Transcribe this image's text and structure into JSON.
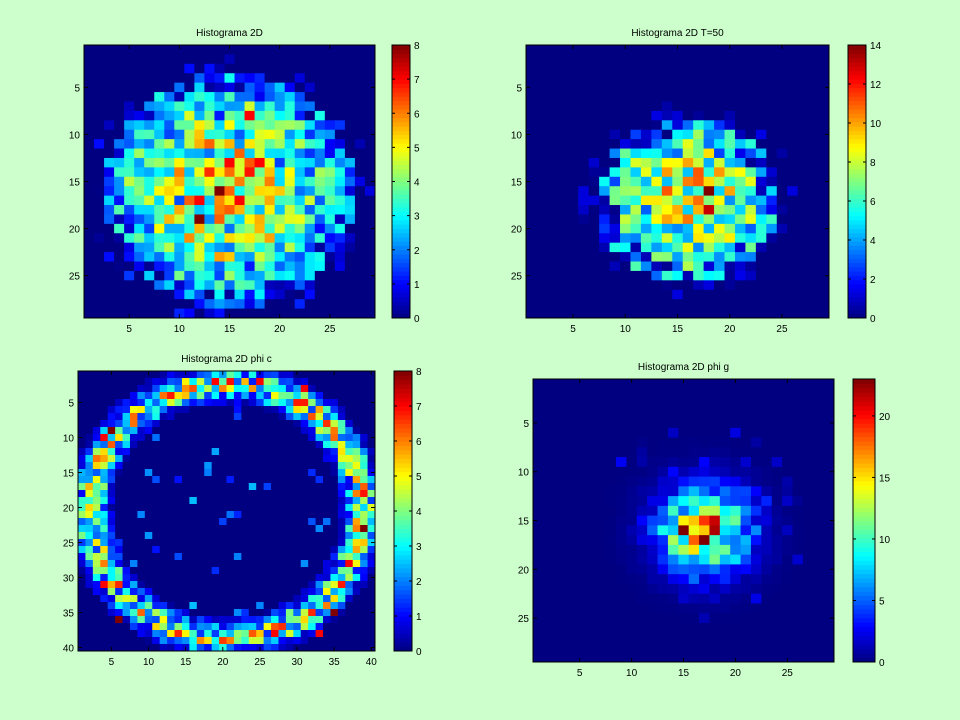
{
  "figure": {
    "background": "#ccffcc",
    "colormap": "jet",
    "axes_background": "#00008f"
  },
  "chart_data": [
    {
      "type": "heatmap",
      "title": "Histograma 2D",
      "grid_size": 29,
      "xlim": [
        0.5,
        29.5
      ],
      "ylim": [
        0.5,
        29.5
      ],
      "y_reversed": true,
      "xticks": [
        5,
        10,
        15,
        20,
        25
      ],
      "yticks": [
        5,
        10,
        15,
        20,
        25
      ],
      "colorbar": {
        "min": 0,
        "max": 8,
        "ticks": [
          0,
          1,
          2,
          3,
          4,
          5,
          6,
          7,
          8
        ]
      },
      "pattern": {
        "shape": "disk",
        "center": [
          15,
          16
        ],
        "radius": 12.5,
        "peak": 4.0,
        "spread": 9,
        "noise": 0.6,
        "seed": 11
      },
      "hot_cells": [
        [
          14,
          16,
          8
        ],
        [
          16,
          17,
          7
        ],
        [
          12,
          19,
          8
        ],
        [
          15,
          13,
          7
        ],
        [
          18,
          13,
          7
        ],
        [
          17,
          8,
          7
        ],
        [
          14,
          18,
          6
        ],
        [
          19,
          15,
          6
        ],
        [
          10,
          14,
          6
        ],
        [
          12,
          17,
          7
        ],
        [
          16,
          15,
          6
        ]
      ]
    },
    {
      "type": "heatmap",
      "title": "Histograma 2D  T=50",
      "grid_size": 29,
      "xlim": [
        0.5,
        29.5
      ],
      "ylim": [
        0.5,
        29.5
      ],
      "y_reversed": true,
      "xticks": [
        5,
        10,
        15,
        20,
        25
      ],
      "yticks": [
        5,
        10,
        15,
        20,
        25
      ],
      "colorbar": {
        "min": 0,
        "max": 14,
        "ticks": [
          0,
          2,
          4,
          6,
          8,
          10,
          12,
          14
        ]
      },
      "pattern": {
        "shape": "disk",
        "center": [
          16,
          17
        ],
        "radius": 8.8,
        "peak": 7.5,
        "spread": 7,
        "noise": 0.55,
        "seed": 23
      },
      "hot_cells": [
        [
          18,
          16,
          14
        ],
        [
          18,
          18,
          13
        ],
        [
          17,
          15,
          11
        ],
        [
          14,
          19,
          10
        ],
        [
          20,
          16,
          10
        ],
        [
          16,
          13,
          10
        ],
        [
          12,
          17,
          9
        ]
      ]
    },
    {
      "type": "heatmap",
      "title": "Histograma 2D phi c",
      "grid_size": 40,
      "xlim": [
        0.5,
        40.5
      ],
      "ylim": [
        0.5,
        40.5
      ],
      "y_reversed": true,
      "xticks": [
        5,
        10,
        15,
        20,
        25,
        30,
        35,
        40
      ],
      "yticks": [
        5,
        10,
        15,
        20,
        25,
        30,
        35,
        40
      ],
      "colorbar": {
        "min": 0,
        "max": 8,
        "ticks": [
          0,
          1,
          2,
          3,
          4,
          5,
          6,
          7,
          8
        ]
      },
      "pattern": {
        "shape": "ring",
        "center": [
          20.5,
          20.5
        ],
        "radius": 18.3,
        "peak": 4.2,
        "spread": 1.4,
        "noise": 0.7,
        "seed": 37
      },
      "hot_cells": [
        [
          5,
          9,
          8
        ],
        [
          4,
          10,
          7
        ],
        [
          25,
          2,
          7
        ],
        [
          31,
          3,
          7
        ],
        [
          35,
          35,
          8
        ],
        [
          39,
          23,
          8
        ],
        [
          6,
          36,
          8
        ],
        [
          4,
          31,
          7
        ],
        [
          37,
          28,
          7
        ],
        [
          33,
          38,
          7
        ],
        [
          21,
          39,
          6
        ],
        [
          27,
          38,
          7
        ]
      ]
    },
    {
      "type": "heatmap",
      "title": "Histograma 2D phi g",
      "grid_size": 29,
      "xlim": [
        0.5,
        29.5
      ],
      "ylim": [
        0.5,
        29.5
      ],
      "y_reversed": true,
      "xticks": [
        5,
        10,
        15,
        20,
        25
      ],
      "yticks": [
        5,
        10,
        15,
        20,
        25
      ],
      "colorbar": {
        "min": 0,
        "max": 23,
        "ticks": [
          0,
          5,
          10,
          15,
          20
        ]
      },
      "pattern": {
        "shape": "gauss",
        "center": [
          17,
          16
        ],
        "radius": 11,
        "peak": 17,
        "spread": 2.8,
        "noise": 0.5,
        "seed": 53
      },
      "hot_cells": [
        [
          15,
          16,
          23
        ],
        [
          17,
          17,
          23
        ],
        [
          18,
          16,
          22
        ],
        [
          17,
          15,
          19
        ],
        [
          16,
          17,
          18
        ]
      ]
    }
  ]
}
